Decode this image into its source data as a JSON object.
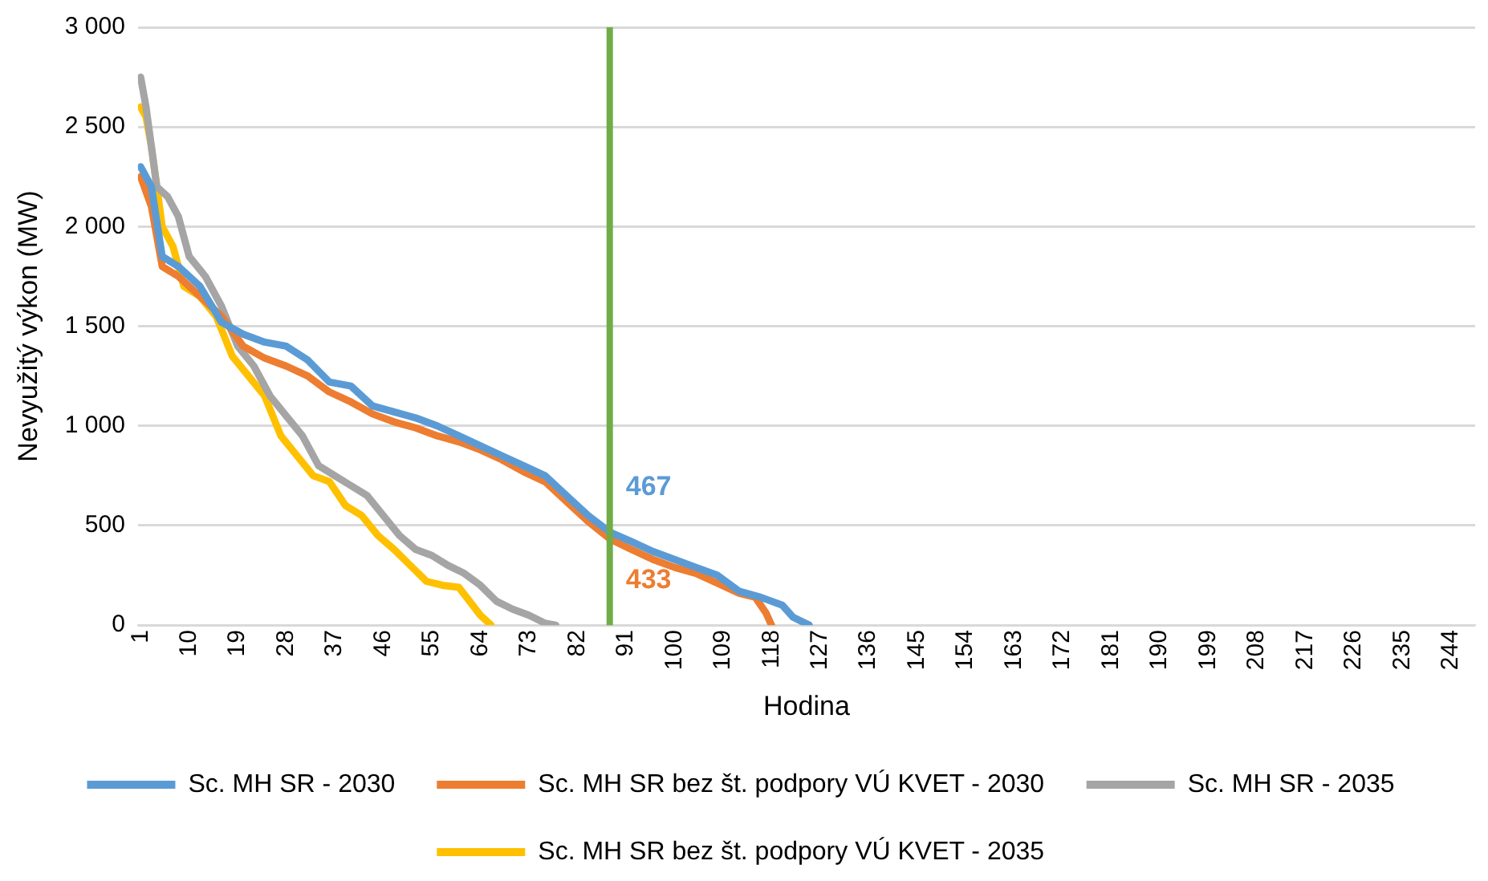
{
  "chart_data": {
    "type": "line",
    "xlabel": "Hodina",
    "ylabel": "Nevyužitý výkon (MW)",
    "xlim": [
      0.5,
      248.5
    ],
    "xticks": [
      1,
      10,
      19,
      28,
      37,
      46,
      55,
      64,
      73,
      82,
      91,
      100,
      109,
      118,
      127,
      136,
      145,
      154,
      163,
      172,
      181,
      190,
      199,
      208,
      217,
      226,
      235,
      244
    ],
    "ylim": [
      0,
      3000
    ],
    "yticks": [
      0,
      {
        "value": 500,
        "label": "500"
      },
      {
        "value": 1000,
        "label": "1 000"
      },
      {
        "value": 1500,
        "label": "1 500"
      },
      {
        "value": 2000,
        "label": "2 000"
      },
      {
        "value": 2500,
        "label": "2 500"
      },
      {
        "value": 3000,
        "label": "3 000"
      }
    ],
    "grid": "y",
    "legend": "bottom",
    "marker": "none",
    "line_style": "solid",
    "series": [
      {
        "name": "Sc. MH SR - 2030",
        "color": "#5b9bd5",
        "x": [
          1,
          3,
          5,
          8,
          12,
          16,
          20,
          24,
          28,
          32,
          36,
          40,
          44,
          48,
          52,
          56,
          60,
          64,
          68,
          72,
          76,
          80,
          84,
          88,
          92,
          96,
          100,
          104,
          108,
          112,
          116,
          120,
          122,
          125
        ],
        "values": [
          2300,
          2200,
          1850,
          1800,
          1700,
          1520,
          1460,
          1420,
          1400,
          1330,
          1220,
          1200,
          1100,
          1070,
          1040,
          1000,
          950,
          900,
          850,
          800,
          750,
          650,
          550,
          467,
          420,
          370,
          330,
          290,
          250,
          170,
          140,
          100,
          40,
          0
        ]
      },
      {
        "name": "Sc. MH SR bez št. podpory VÚ KVET - 2030",
        "color": "#ed7d31",
        "x": [
          1,
          3,
          5,
          8,
          12,
          16,
          20,
          24,
          28,
          32,
          36,
          40,
          44,
          48,
          52,
          56,
          60,
          64,
          68,
          72,
          76,
          80,
          84,
          88,
          92,
          96,
          100,
          104,
          108,
          112,
          115,
          117,
          118
        ],
        "values": [
          2250,
          2100,
          1800,
          1750,
          1650,
          1550,
          1400,
          1340,
          1300,
          1250,
          1170,
          1120,
          1060,
          1020,
          990,
          950,
          920,
          880,
          830,
          770,
          720,
          620,
          520,
          433,
          380,
          330,
          290,
          260,
          210,
          160,
          140,
          60,
          0
        ]
      },
      {
        "name": "Sc. MH SR - 2035",
        "color": "#a5a5a5",
        "x": [
          1,
          2,
          4,
          6,
          8,
          10,
          13,
          16,
          19,
          22,
          25,
          28,
          31,
          34,
          37,
          40,
          43,
          46,
          49,
          52,
          55,
          58,
          61,
          64,
          67,
          70,
          73,
          76,
          78
        ],
        "values": [
          2750,
          2600,
          2200,
          2150,
          2050,
          1850,
          1750,
          1600,
          1400,
          1300,
          1150,
          1050,
          950,
          800,
          750,
          700,
          650,
          550,
          450,
          380,
          350,
          300,
          260,
          200,
          120,
          80,
          50,
          10,
          0
        ]
      },
      {
        "name": "Sc. MH SR bez št. podpory VÚ KVET - 2035",
        "color": "#ffc000",
        "x": [
          1,
          2,
          3,
          5,
          7,
          9,
          12,
          15,
          18,
          21,
          24,
          27,
          30,
          33,
          36,
          39,
          42,
          45,
          48,
          51,
          54,
          57,
          60,
          62,
          64,
          66
        ],
        "values": [
          2600,
          2550,
          2400,
          2000,
          1900,
          1700,
          1650,
          1550,
          1350,
          1250,
          1150,
          950,
          850,
          750,
          720,
          600,
          550,
          450,
          380,
          300,
          220,
          200,
          190,
          120,
          50,
          0
        ]
      }
    ],
    "ref_lines": [
      {
        "axis": "x",
        "value": 88,
        "color": "#70ad47"
      }
    ],
    "annotations": [
      {
        "text": "467",
        "x": 88,
        "y": 467
      },
      {
        "text": "433",
        "x": 88,
        "y": 433
      }
    ]
  }
}
